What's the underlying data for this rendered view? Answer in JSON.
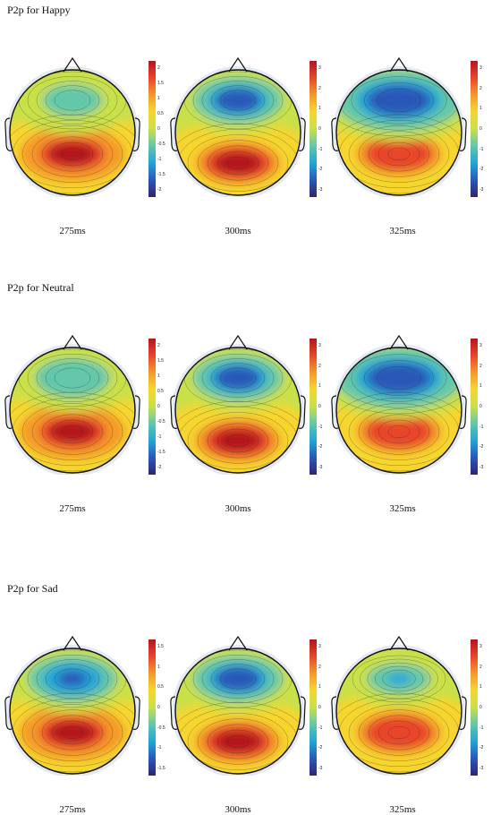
{
  "figure": {
    "colormap": [
      "#30246e",
      "#2a58b8",
      "#21a6d6",
      "#63c7a9",
      "#c9e04a",
      "#f6d62e",
      "#f49a2b",
      "#e8452a",
      "#b3161f"
    ],
    "rows": [
      {
        "title": "P2p for Happy",
        "maps": [
          {
            "time": "275ms",
            "ticks": [
              "2",
              "1.5",
              "1",
              "0.5",
              "0",
              "-0.5",
              "-1",
              "-1.5",
              "-2"
            ],
            "scale": 2,
            "front": -0.55,
            "frontSpread": "wide",
            "back": 1.9,
            "backPos": "mid"
          },
          {
            "time": "300ms",
            "ticks": [
              "3",
              "2",
              "1",
              "0",
              "-1",
              "-2",
              "-3"
            ],
            "scale": 3,
            "front": -2.4,
            "frontSpread": "wide",
            "back": 2.7,
            "backPos": "low"
          },
          {
            "time": "325ms",
            "ticks": [
              "3",
              "2",
              "1",
              "0",
              "-1",
              "-2",
              "-3"
            ],
            "scale": 3,
            "front": -2.6,
            "frontSpread": "full",
            "back": 2.6,
            "backPos": "mid"
          }
        ]
      },
      {
        "title": "P2p for Neutral",
        "maps": [
          {
            "time": "275ms",
            "ticks": [
              "2",
              "1.5",
              "1",
              "0.5",
              "0",
              "-0.5",
              "-1",
              "-1.5",
              "-2"
            ],
            "scale": 2,
            "front": -0.7,
            "frontSpread": "wide",
            "back": 1.9,
            "backPos": "mid"
          },
          {
            "time": "300ms",
            "ticks": [
              "3",
              "2",
              "1",
              "0",
              "-1",
              "-2",
              "-3"
            ],
            "scale": 3,
            "front": -2.5,
            "frontSpread": "wide",
            "back": 2.8,
            "backPos": "low"
          },
          {
            "time": "325ms",
            "ticks": [
              "3",
              "2",
              "1",
              "0",
              "-1",
              "-2",
              "-3"
            ],
            "scale": 3,
            "front": -2.4,
            "frontSpread": "full",
            "back": 2.5,
            "backPos": "mid"
          }
        ]
      },
      {
        "title": "P2p for Sad",
        "maps": [
          {
            "time": "275ms",
            "ticks": [
              "1.5",
              "1",
              "0.5",
              "0",
              "-0.5",
              "-1",
              "-1.5"
            ],
            "scale": 1.8,
            "front": -1.4,
            "frontSpread": "wide",
            "back": 1.7,
            "backPos": "mid"
          },
          {
            "time": "300ms",
            "ticks": [
              "3",
              "2",
              "1",
              "0",
              "-1",
              "-2",
              "-3"
            ],
            "scale": 3,
            "front": -2.5,
            "frontSpread": "wide",
            "back": 2.8,
            "backPos": "low"
          },
          {
            "time": "325ms",
            "ticks": [
              "3",
              "2",
              "1",
              "0",
              "-1",
              "-2",
              "-3"
            ],
            "scale": 3,
            "front": -1.3,
            "frontSpread": "narrow",
            "back": 2.5,
            "backPos": "mid"
          }
        ]
      }
    ]
  }
}
